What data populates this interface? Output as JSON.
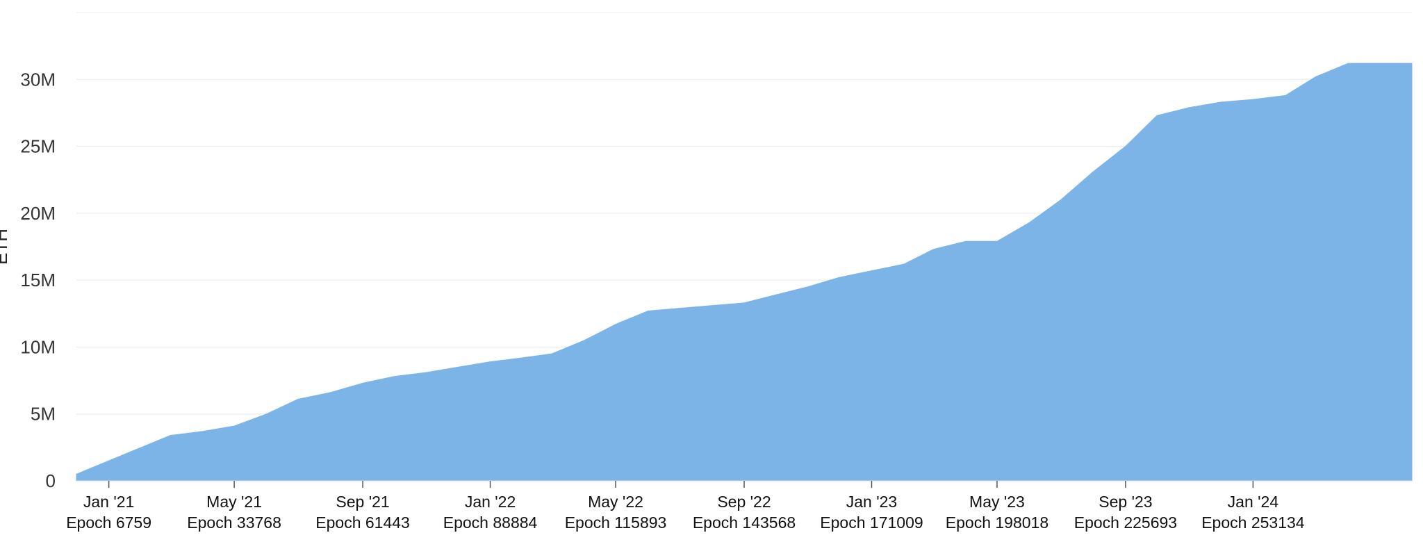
{
  "chart_data": {
    "type": "area",
    "title": "",
    "xlabel": "",
    "ylabel": "ETH",
    "ylim": [
      0,
      35000000
    ],
    "xlim": [
      "2020-12-01",
      "2024-06-01"
    ],
    "grid": true,
    "legend": "none",
    "color": "#7DB4E8",
    "y_ticks": [
      {
        "value": 0,
        "label": "0"
      },
      {
        "value": 5000000,
        "label": "5M"
      },
      {
        "value": 10000000,
        "label": "10M"
      },
      {
        "value": 15000000,
        "label": "15M"
      },
      {
        "value": 20000000,
        "label": "20M"
      },
      {
        "value": 25000000,
        "label": "25M"
      },
      {
        "value": 30000000,
        "label": "30M"
      }
    ],
    "x_ticks": [
      {
        "date": "2021-01-01",
        "label": "Jan '21",
        "epoch": "Epoch 6759"
      },
      {
        "date": "2021-05-01",
        "label": "May '21",
        "epoch": "Epoch 33768"
      },
      {
        "date": "2021-09-01",
        "label": "Sep '21",
        "epoch": "Epoch 61443"
      },
      {
        "date": "2022-01-01",
        "label": "Jan '22",
        "epoch": "Epoch 88884"
      },
      {
        "date": "2022-05-01",
        "label": "May '22",
        "epoch": "Epoch 115893"
      },
      {
        "date": "2022-09-01",
        "label": "Sep '22",
        "epoch": "Epoch 143568"
      },
      {
        "date": "2023-01-01",
        "label": "Jan '23",
        "epoch": "Epoch 171009"
      },
      {
        "date": "2023-05-01",
        "label": "May '23",
        "epoch": "Epoch 198018"
      },
      {
        "date": "2023-09-01",
        "label": "Sep '23",
        "epoch": "Epoch 225693"
      },
      {
        "date": "2024-01-01",
        "label": "Jan '24",
        "epoch": "Epoch 253134"
      }
    ],
    "series": [
      {
        "x": [
          "2020-12-01",
          "2021-01-01",
          "2021-02-01",
          "2021-03-01",
          "2021-04-01",
          "2021-05-01",
          "2021-06-01",
          "2021-07-01",
          "2021-08-01",
          "2021-09-01",
          "2021-10-01",
          "2021-11-01",
          "2021-12-01",
          "2022-01-01",
          "2022-02-01",
          "2022-03-01",
          "2022-04-01",
          "2022-05-01",
          "2022-06-01",
          "2022-07-01",
          "2022-08-01",
          "2022-09-01",
          "2022-10-01",
          "2022-11-01",
          "2022-12-01",
          "2023-01-01",
          "2023-02-01",
          "2023-03-01",
          "2023-04-01",
          "2023-05-01",
          "2023-06-01",
          "2023-07-01",
          "2023-08-01",
          "2023-09-01",
          "2023-10-01",
          "2023-11-01",
          "2023-12-01",
          "2024-01-01",
          "2024-02-01",
          "2024-03-01",
          "2024-04-01",
          "2024-05-01",
          "2024-06-01"
        ],
        "values": [
          500000,
          1500000,
          2500000,
          3400000,
          3700000,
          4100000,
          5000000,
          6100000,
          6600000,
          7300000,
          7800000,
          8100000,
          8500000,
          8900000,
          9200000,
          9500000,
          10500000,
          11700000,
          12700000,
          12900000,
          13100000,
          13300000,
          13900000,
          14500000,
          15200000,
          15700000,
          16200000,
          17300000,
          17900000,
          17900000,
          19300000,
          21000000,
          23100000,
          25000000,
          27300000,
          27900000,
          28300000,
          28500000,
          28800000,
          30200000,
          31200000,
          31200000,
          31200000
        ]
      }
    ]
  }
}
